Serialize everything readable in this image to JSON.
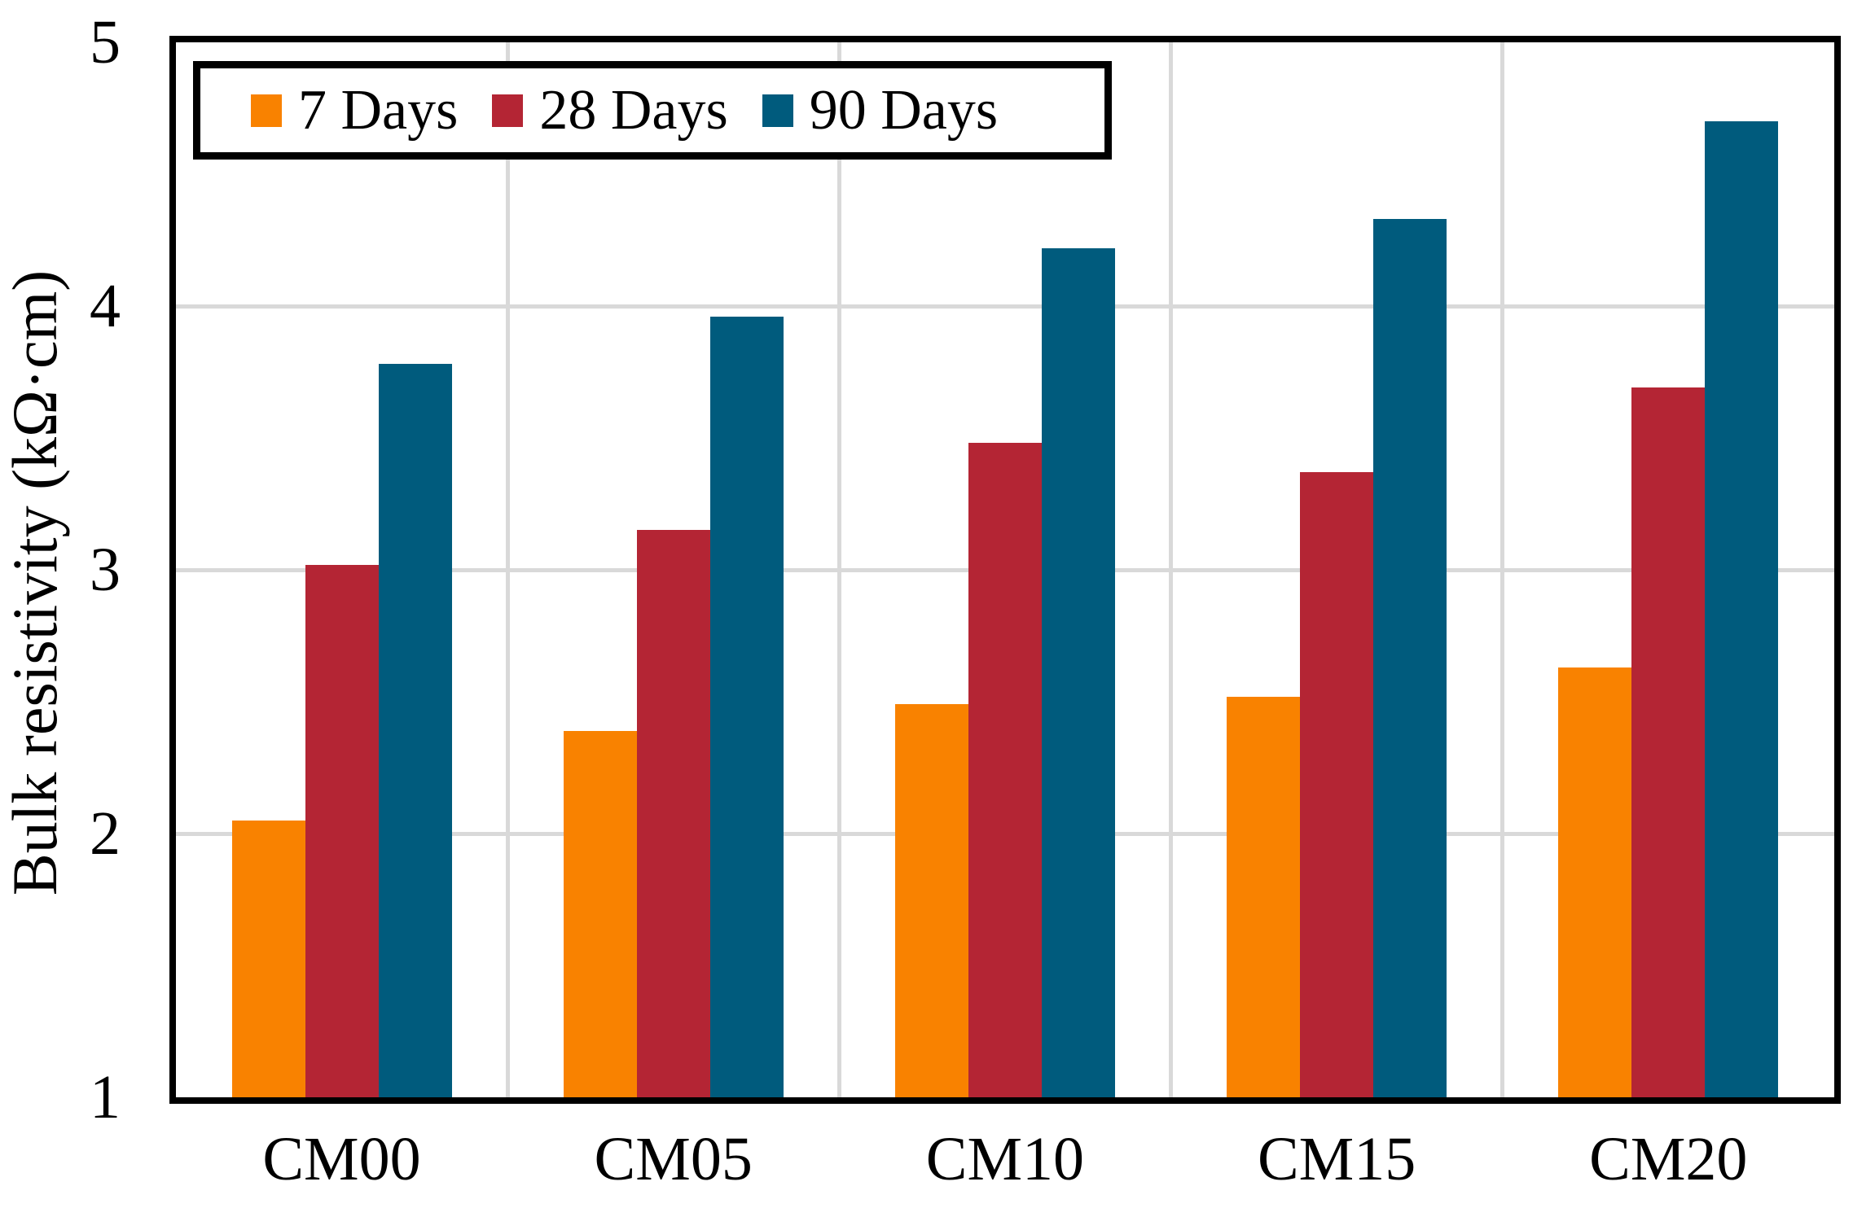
{
  "page": {
    "background": "#ffffff"
  },
  "chart_data": {
    "type": "bar",
    "title": "",
    "xlabel": "",
    "ylabel": "Bulk resistivity (kΩ·cm)",
    "ylim": [
      1,
      5
    ],
    "yticks": [
      1,
      2,
      3,
      4,
      5
    ],
    "grid": true,
    "legend_position": "top-left-inside",
    "categories": [
      "CM00",
      "CM05",
      "CM10",
      "CM15",
      "CM20"
    ],
    "series": [
      {
        "name": "7 Days",
        "color": "#F98200",
        "values": [
          2.05,
          2.39,
          2.49,
          2.52,
          2.63
        ]
      },
      {
        "name": "28 Days",
        "color": "#B42534",
        "values": [
          3.02,
          3.15,
          3.48,
          3.37,
          3.69
        ]
      },
      {
        "name": "90 Days",
        "color": "#005B7D",
        "values": [
          3.78,
          3.96,
          4.22,
          4.33,
          4.7
        ]
      }
    ],
    "colors": {
      "gridline": "#D9D9D9",
      "axis": "#000000",
      "text": "#000000",
      "plot_background": "#ffffff"
    }
  }
}
